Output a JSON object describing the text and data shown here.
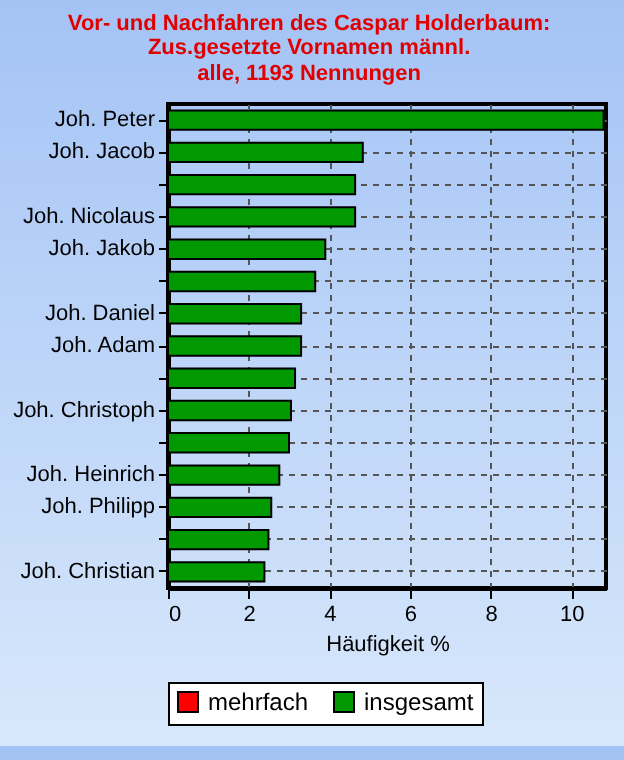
{
  "chart_data": {
    "type": "bar",
    "orientation": "horizontal",
    "title": "Vor- und Nachfahren des Caspar Holderbaum:",
    "subtitle": [
      "Zus.gesetzte Vornamen männl.",
      "alle, 1193 Nennungen"
    ],
    "xlabel": "Häufigkeit %",
    "categories": [
      "Joh. Peter",
      "Joh. Jacob",
      null,
      "Joh. Nicolaus",
      "Joh. Jakob",
      null,
      "Joh. Daniel",
      "Joh. Adam",
      null,
      "Joh. Christoph",
      null,
      "Joh. Heinrich",
      "Joh. Philipp",
      null,
      "Joh. Christian"
    ],
    "series": [
      {
        "name": "mehrfach",
        "color": "#ff0000",
        "values": [
          null,
          null,
          null,
          null,
          null,
          null,
          null,
          null,
          null,
          null,
          null,
          null,
          null,
          null,
          null
        ]
      },
      {
        "name": "insgesamt",
        "color": "#009900",
        "values": [
          10.8,
          4.83,
          4.64,
          4.64,
          3.9,
          3.65,
          3.3,
          3.3,
          3.15,
          3.05,
          3.0,
          2.76,
          2.56,
          2.49,
          2.39
        ]
      }
    ],
    "xlim": [
      0,
      10.86
    ],
    "xticks": [
      0,
      2,
      4,
      6,
      8,
      10
    ],
    "grid": true,
    "legend": "bottom"
  }
}
